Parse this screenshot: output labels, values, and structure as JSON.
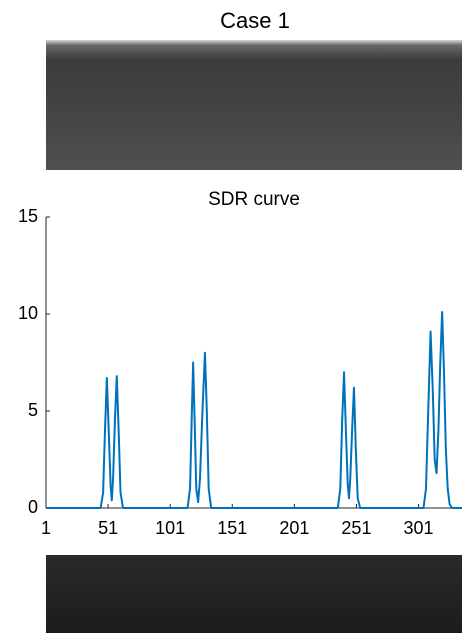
{
  "figure_title": "Case 1",
  "chart_data": {
    "type": "line",
    "title": "SDR curve",
    "x": [
      1,
      45,
      47,
      48.5,
      50,
      51.5,
      53,
      54,
      55,
      56.5,
      58,
      59.5,
      61,
      63,
      115,
      117,
      118.3,
      119.5,
      120.7,
      122,
      123.5,
      125,
      127,
      129,
      130.5,
      132,
      134,
      236,
      238,
      239.5,
      241,
      242.5,
      244,
      245,
      246,
      247.5,
      249,
      250.5,
      252,
      254,
      305,
      307,
      308.8,
      310.7,
      312.5,
      314,
      315.5,
      317,
      318.5,
      320,
      321.5,
      323,
      324.5,
      326,
      328,
      336
    ],
    "series": [
      {
        "color": "#0072bd",
        "values": [
          0,
          0,
          0.8,
          4,
          6.7,
          4,
          1.2,
          0.4,
          1.5,
          4.5,
          6.8,
          4,
          0.8,
          0,
          0,
          1,
          4.5,
          7.5,
          4.5,
          1,
          0.3,
          1.5,
          5,
          8,
          5,
          1,
          0,
          0,
          1,
          4.5,
          7,
          4,
          1.2,
          0.5,
          1.5,
          4,
          6.2,
          3,
          0.5,
          0,
          0,
          1,
          5,
          9.1,
          6,
          2.5,
          1.8,
          4,
          7.5,
          10.1,
          7,
          3,
          1,
          0.2,
          0,
          0
        ]
      }
    ],
    "xlim": [
      1,
      336
    ],
    "xticks": [
      1,
      51,
      101,
      151,
      201,
      251,
      301
    ],
    "ylim": [
      0,
      15
    ],
    "yticks": [
      0,
      5,
      10,
      15
    ],
    "grid": false
  }
}
